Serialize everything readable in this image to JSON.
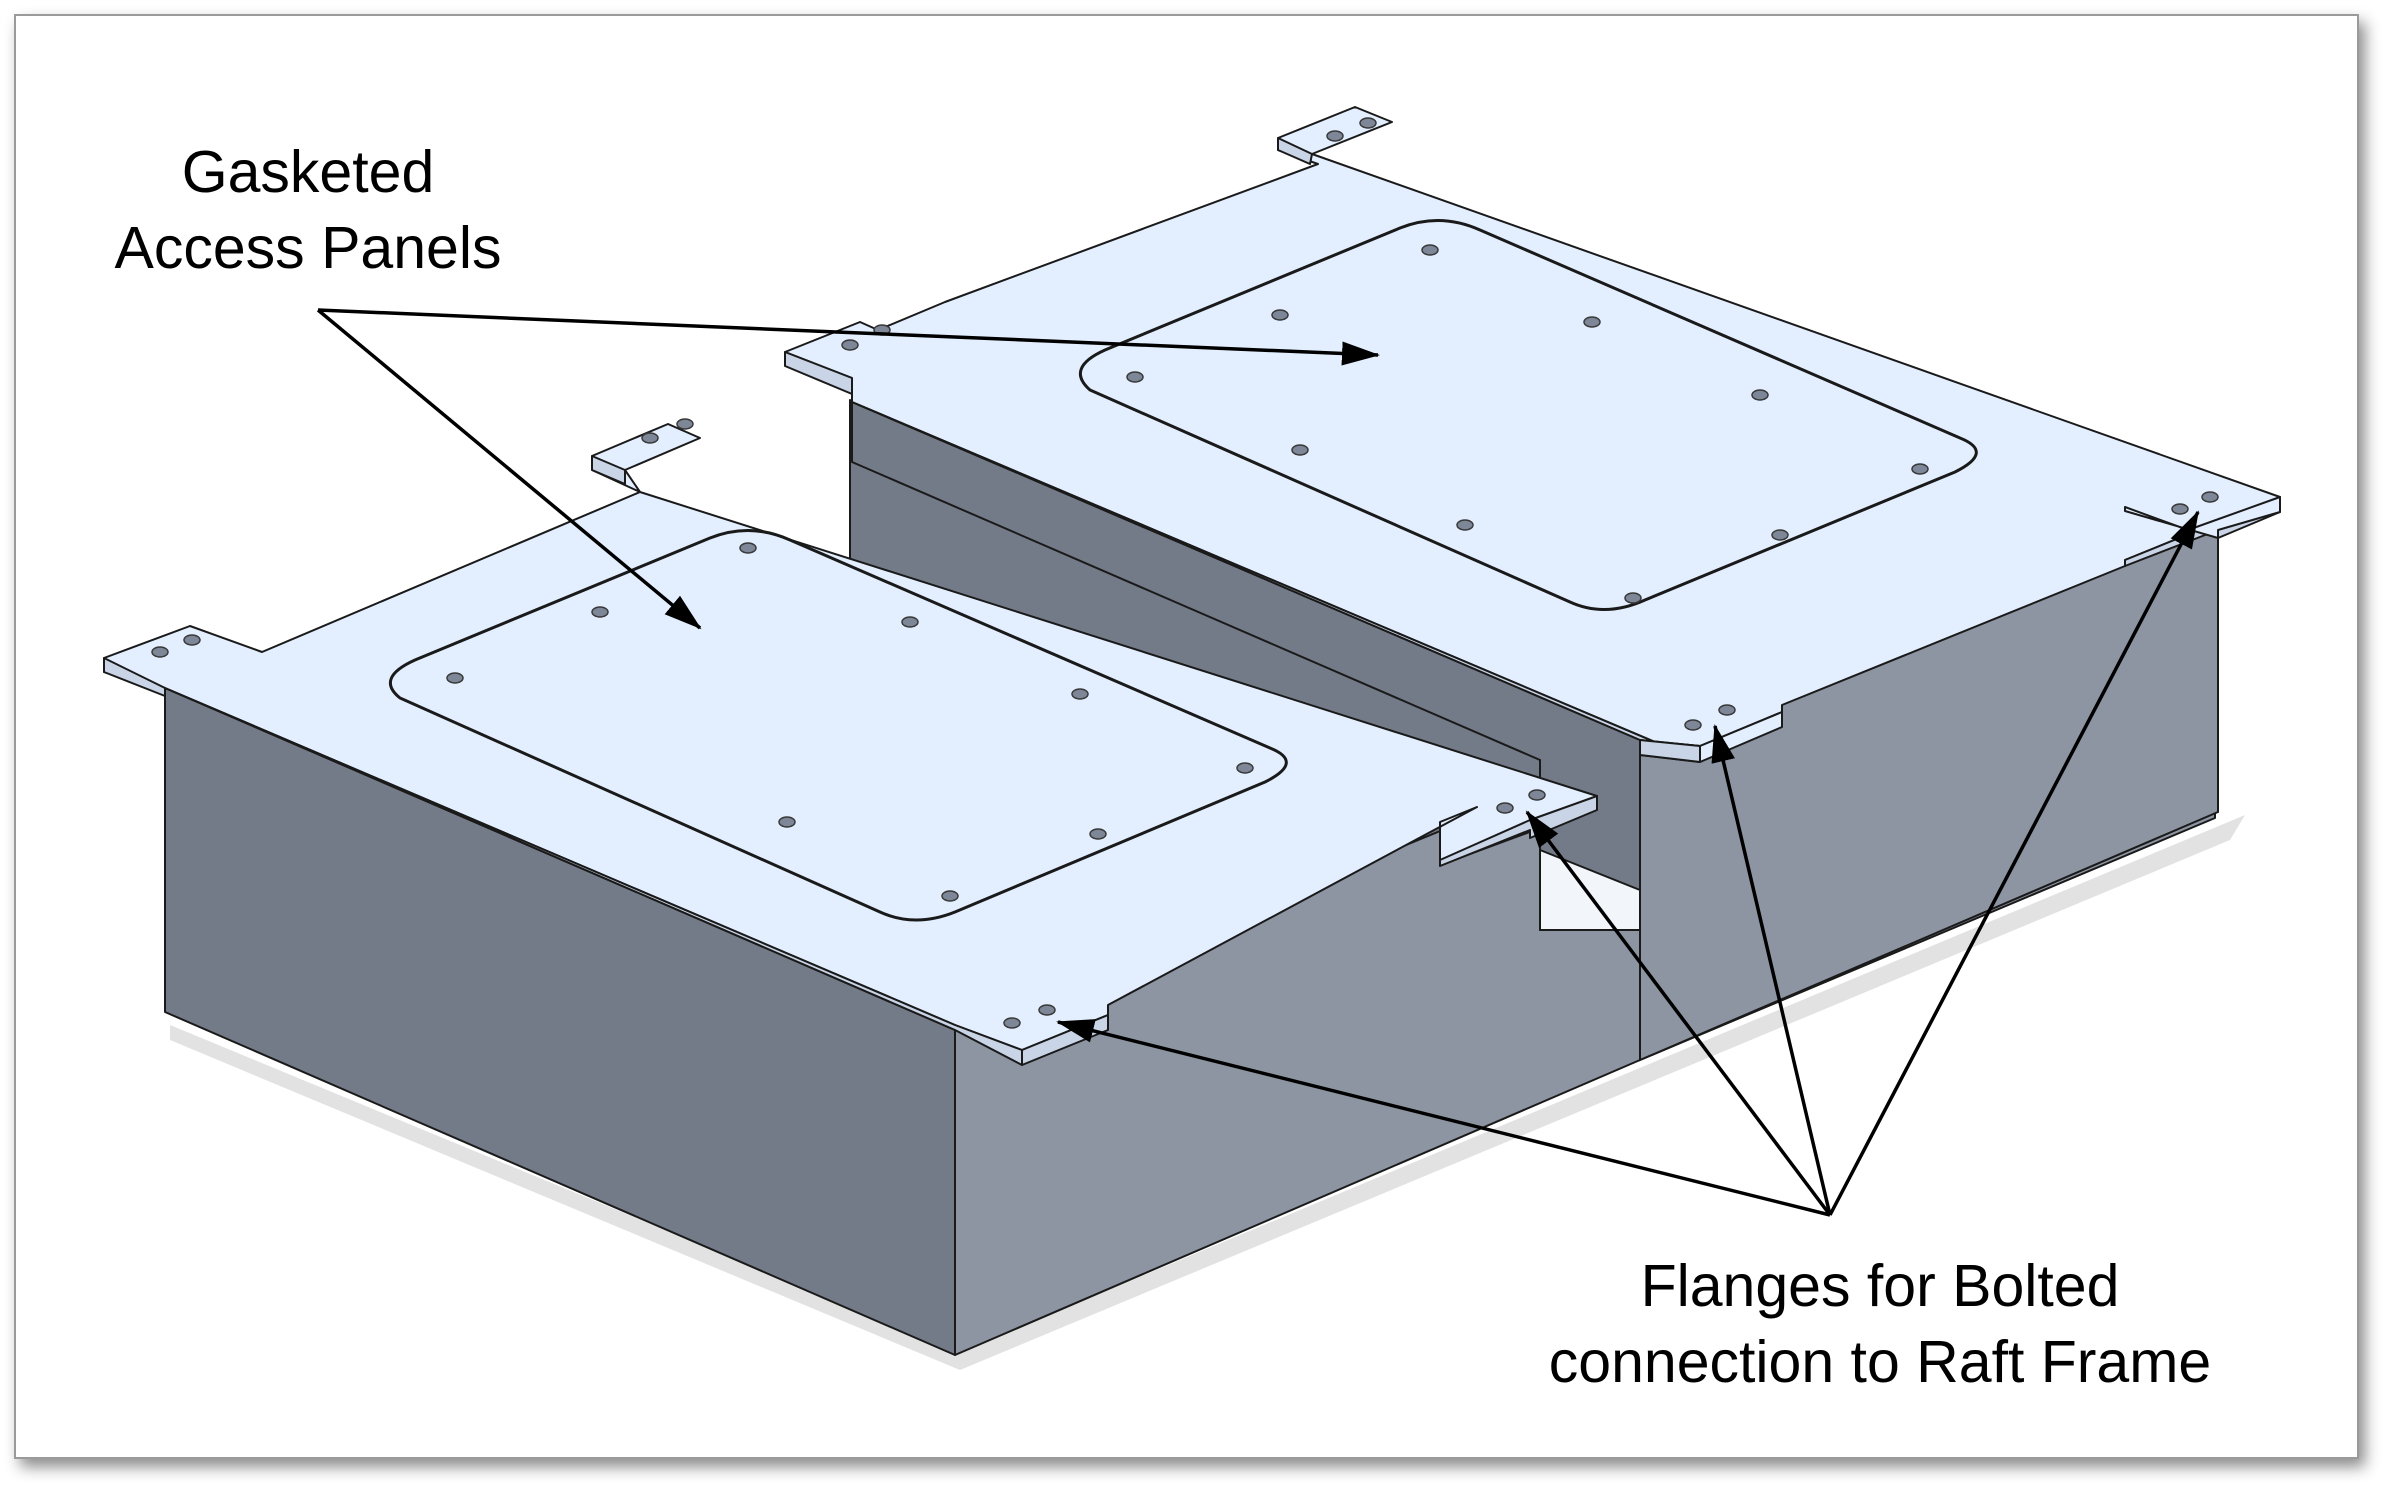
{
  "labels": {
    "panels_line1": "Gasketed",
    "panels_line2": "Access Panels",
    "flanges_line1": "Flanges for Bolted",
    "flanges_line2": "connection to Raft Frame"
  },
  "colors": {
    "top_face": "#e3efff",
    "left_face": "#747b88",
    "right_face": "#8d95a2",
    "edge": "#1a1a1a",
    "arrow": "#000000"
  }
}
